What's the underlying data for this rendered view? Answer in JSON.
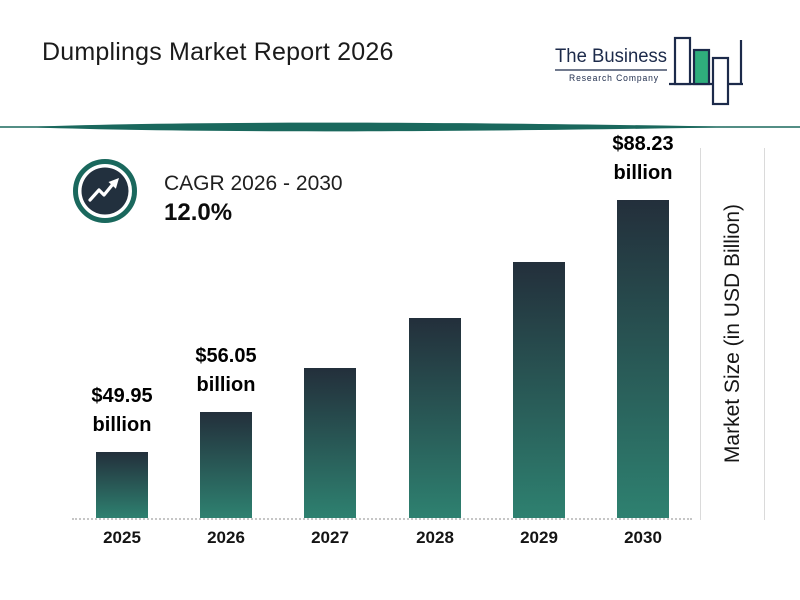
{
  "header": {
    "title": "Dumplings Market Report 2026",
    "logo": {
      "name": "The Business Research Company",
      "line1": "The Business",
      "line2": "Research Company"
    }
  },
  "cagr": {
    "label": "CAGR 2026 - 2030",
    "value": "12.0%"
  },
  "chart_data": {
    "type": "bar",
    "title": "Dumplings Market Report 2026",
    "categories": [
      "2025",
      "2026",
      "2027",
      "2028",
      "2029",
      "2030"
    ],
    "values": [
      49.95,
      56.05,
      62.78,
      70.31,
      78.75,
      88.23
    ],
    "value_labels": [
      {
        "line1": "$49.95",
        "line2": "billion"
      },
      {
        "line1": "$56.05",
        "line2": "billion"
      },
      null,
      null,
      null,
      {
        "line1": "$88.23",
        "line2": "billion"
      }
    ],
    "xlabel": "",
    "ylabel": "Market Size (in USD Billion)",
    "ylim": [
      40,
      90
    ],
    "grid": false,
    "legend": "none",
    "bar_color_top": "#232f3b",
    "bar_color_bottom": "#2e8170"
  },
  "colors": {
    "accent_teal": "#1a685d",
    "dark_navy": "#22303e",
    "logo_navy": "#1c2a4a",
    "logo_green": "#2fae7c"
  }
}
